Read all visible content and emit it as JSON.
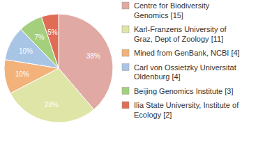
{
  "chart_data": {
    "type": "pie",
    "categories": [
      "Centre for Biodiversity Genomics [15]",
      "Karl-Franzens University of Graz, Dept of Zoology [11]",
      "Mined from GenBank, NCBI [4]",
      "Carl von Ossietzky Universitat Oldenburg [4]",
      "Beijing Genomics Institute [3]",
      "Ilia State University, Institute of Ecology [2]"
    ],
    "values": [
      38,
      28,
      10,
      10,
      7,
      5
    ],
    "value_labels": [
      "38%",
      "28%",
      "10%",
      "10%",
      "7%",
      "5%"
    ],
    "colors": [
      "#e1a9a3",
      "#dfe5a6",
      "#f2b27a",
      "#a9c5e6",
      "#a4cf7c",
      "#e06c55"
    ],
    "data_labels": true,
    "legend": "right"
  }
}
